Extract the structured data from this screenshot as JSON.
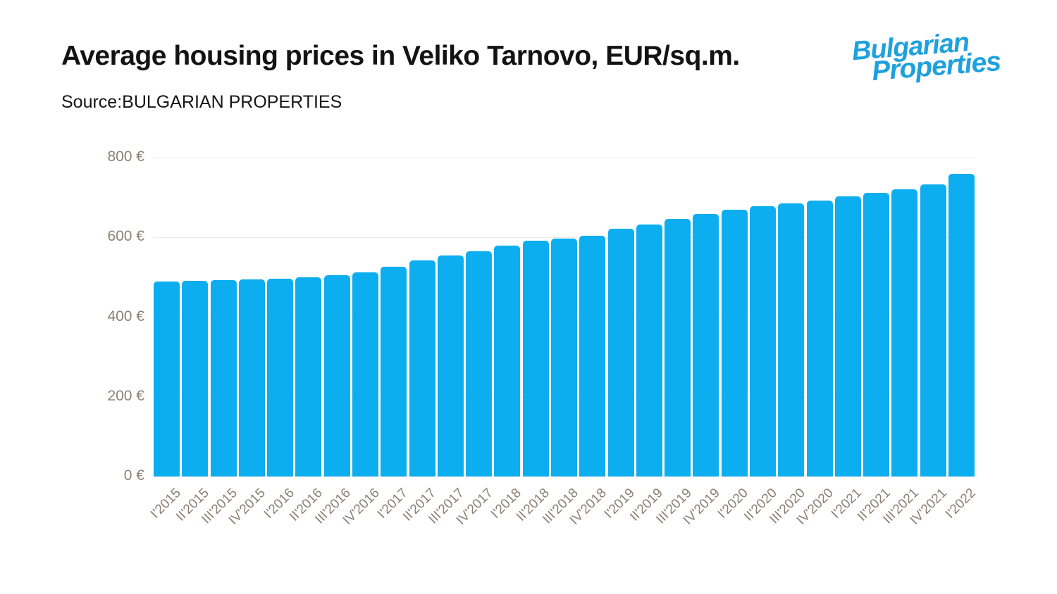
{
  "header": {
    "title": "Average housing prices in Veliko Tarnovo, EUR/sq.m.",
    "source": "Source:BULGARIAN PROPERTIES",
    "logo": {
      "line1": "Bulgarian",
      "line2": "Properties",
      "color": "#1EA1DC"
    }
  },
  "chart_data": {
    "type": "bar",
    "title": "Average housing prices in Veliko Tarnovo, EUR/sq.m.",
    "categories": [
      "I'2015",
      "II'2015",
      "III'2015",
      "IV'2015",
      "I'2016",
      "II'2016",
      "III'2016",
      "IV'2016",
      "I'2017",
      "II'2017",
      "III'2017",
      "IV'2017",
      "I'2018",
      "II'2018",
      "III'2018",
      "IV'2018",
      "I'2019",
      "II'2019",
      "III'2019",
      "IV'2019",
      "I'2020",
      "II'2020",
      "III'2020",
      "IV'2020",
      "I'2021",
      "II'2021",
      "III'2021",
      "IV'2021",
      "I'2022"
    ],
    "values": [
      489,
      491,
      492,
      494,
      496,
      500,
      505,
      513,
      526,
      543,
      554,
      565,
      579,
      591,
      597,
      604,
      621,
      633,
      647,
      659,
      669,
      678,
      686,
      693,
      703,
      711,
      721,
      733,
      759
    ],
    "xlabel": "",
    "ylabel": "EUR/sq.m.",
    "ylim": [
      0,
      800
    ],
    "yticks": [
      0,
      200,
      400,
      600,
      800
    ],
    "ytick_labels": [
      "0 €",
      "200 €",
      "400 €",
      "600 €",
      "800 €"
    ],
    "grid": true,
    "legend": "none",
    "bar_color": "#0CAEF0",
    "grid_color": "#ECEAE6",
    "axis_label_color": "#8C8173"
  }
}
